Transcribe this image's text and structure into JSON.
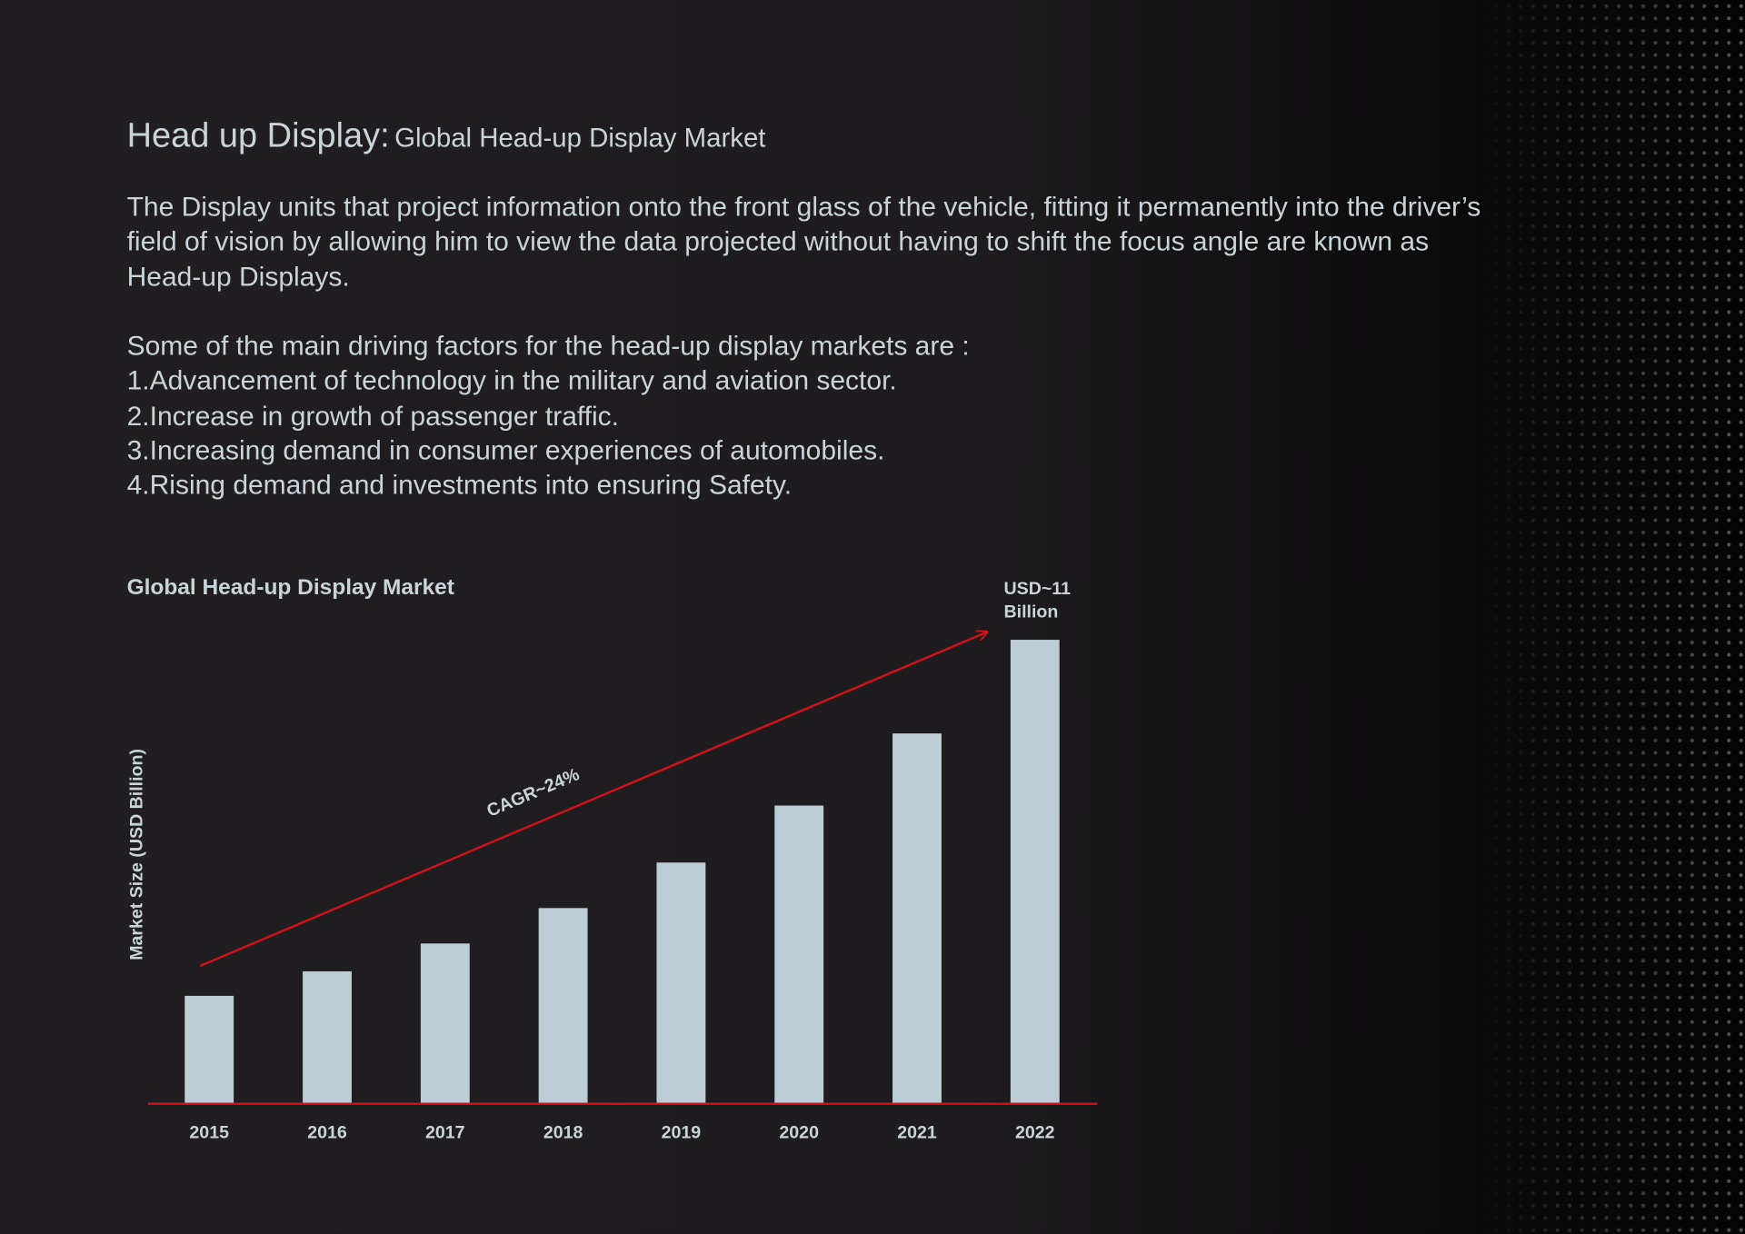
{
  "header": {
    "title": "Head up Display:",
    "subtitle": "Global Head-up Display Market"
  },
  "intro": "The Display units that project information onto the front glass of the vehicle, fitting it permanently into the driver’s field of vision by allowing him to view the data projected without having to shift the focus angle are known as Head-up Displays.",
  "factors": {
    "heading": "Some of the main driving factors for the head-up display markets are :",
    "items": [
      "1.Advancement of technology in the military and aviation sector.",
      "2.Increase in growth of passenger traffic.",
      "3.Increasing demand in consumer experiences of automobiles.",
      "4.Rising demand and investments into ensuring Safety."
    ]
  },
  "chart_data": {
    "type": "bar",
    "title": "Global Head-up Display Market",
    "y_label": "Market Size (USD Billion)",
    "categories": [
      "2015",
      "2016",
      "2017",
      "2018",
      "2019",
      "2020",
      "2021",
      "2022"
    ],
    "values": [
      2.56,
      3.14,
      3.8,
      4.64,
      5.72,
      7.07,
      8.78,
      11
    ],
    "value_labels": [
      null,
      null,
      null,
      null,
      null,
      null,
      null,
      "USD~11 Billion"
    ],
    "color": "#bccdd5",
    "axis_color": "#d0121b",
    "annotation": "CAGR~24%"
  }
}
